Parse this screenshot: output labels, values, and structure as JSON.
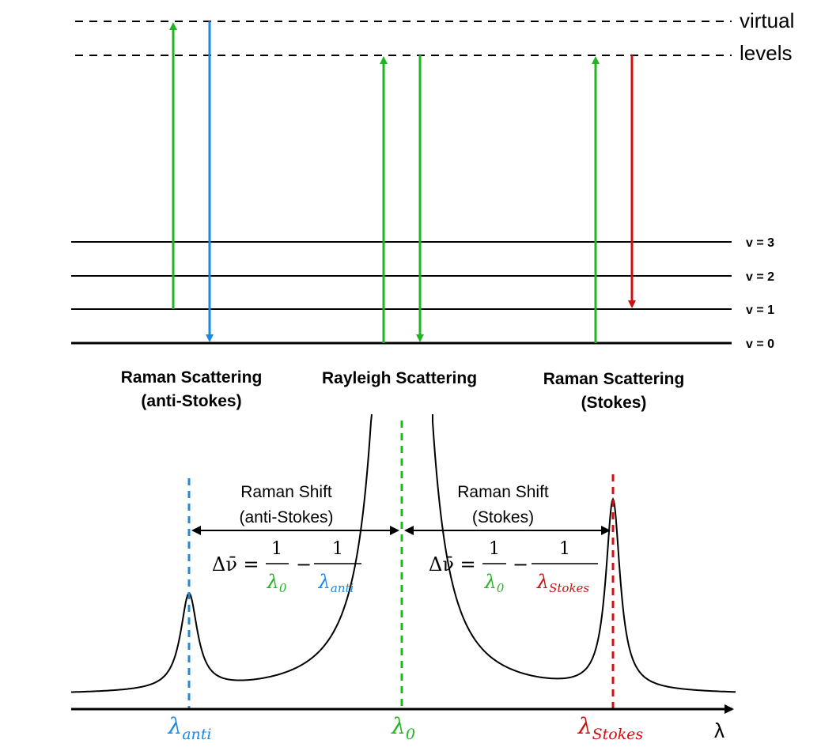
{
  "colors": {
    "black": "#000000",
    "green": "#22b522",
    "blue": "#1e88e5",
    "red": "#cc1111"
  },
  "virtual_levels": {
    "label_line1": "virtual",
    "label_line2": "levels"
  },
  "vib_levels": [
    "v = 3",
    "v = 2",
    "v = 1",
    "v = 0"
  ],
  "captions": {
    "anti": {
      "line1": "Raman Scattering",
      "line2": "(anti-Stokes)"
    },
    "rayleigh": {
      "line1": "Rayleigh Scattering"
    },
    "stokes": {
      "line1": "Raman Scattering",
      "line2": "(Stokes)"
    }
  },
  "shift_anti": {
    "title1": "Raman Shift",
    "title2": "(anti-Stokes)",
    "lhs": "Δν̄ =",
    "num": "1",
    "minus": "−",
    "den1_sym": "λ",
    "den1_sub": "0",
    "den2_sym": "λ",
    "den2_sub": "anti"
  },
  "shift_stokes": {
    "title1": "Raman Shift",
    "title2": "(Stokes)",
    "lhs": "Δν̄ =",
    "num": "1",
    "minus": "−",
    "den1_sym": "λ",
    "den1_sub": "0",
    "den2_sym": "λ",
    "den2_sub": "Stokes"
  },
  "axis": {
    "x_label": "λ",
    "tick_anti": {
      "sym": "λ",
      "sub": "anti"
    },
    "tick_zero": {
      "sym": "λ",
      "sub": "0"
    },
    "tick_stokes": {
      "sym": "λ",
      "sub": "Stokes"
    }
  },
  "chart_data": {
    "type": "line",
    "xlabel": "λ",
    "peaks": [
      {
        "name": "λ_anti",
        "relative_height": 0.3
      },
      {
        "name": "λ_0",
        "relative_height": 1.0
      },
      {
        "name": "λ_Stokes",
        "relative_height": 0.6
      }
    ]
  }
}
